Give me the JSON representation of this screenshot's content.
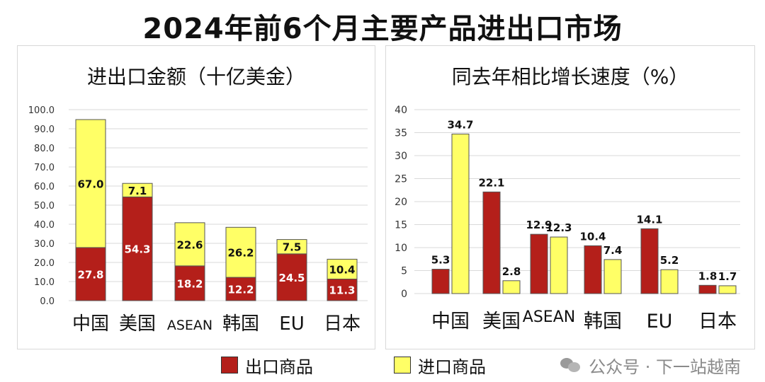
{
  "title": "2024年前6个月主要产品进出口市场",
  "legend": {
    "export_label": "出口商品",
    "import_label": "进口商品",
    "export_color": "#b41f1a",
    "import_color": "#ffff66"
  },
  "watermark": {
    "text": "公众号 · 下一站越南",
    "icon": "wechat-icon"
  },
  "chart_data": [
    {
      "type": "bar",
      "stacked": true,
      "title": "进出口金额（十亿美金）",
      "categories": [
        "中国",
        "美国",
        "ASEAN",
        "韩国",
        "EU",
        "日本"
      ],
      "series": [
        {
          "name": "出口商品",
          "values": [
            27.8,
            54.3,
            18.2,
            12.2,
            24.5,
            11.3
          ]
        },
        {
          "name": "进口商品",
          "values": [
            67.0,
            7.1,
            22.6,
            26.2,
            7.5,
            10.4
          ]
        }
      ],
      "ylim": [
        0,
        100
      ],
      "yticks": [
        "0.0",
        "10.0",
        "20.0",
        "30.0",
        "40.0",
        "50.0",
        "60.0",
        "70.0",
        "80.0",
        "90.0",
        "100.0"
      ],
      "grid": true
    },
    {
      "type": "bar",
      "stacked": false,
      "title": "同去年相比增长速度（%）",
      "categories": [
        "中国",
        "美国",
        "ASEAN",
        "韩国",
        "EU",
        "日本"
      ],
      "series": [
        {
          "name": "出口商品",
          "values": [
            5.3,
            22.1,
            12.9,
            10.4,
            14.1,
            1.8
          ]
        },
        {
          "name": "进口商品",
          "values": [
            34.7,
            2.8,
            12.3,
            7.4,
            5.2,
            1.7
          ]
        }
      ],
      "ylim": [
        0,
        40
      ],
      "yticks": [
        "0",
        "5",
        "10",
        "15",
        "20",
        "25",
        "30",
        "35",
        "40"
      ],
      "grid": true
    }
  ]
}
